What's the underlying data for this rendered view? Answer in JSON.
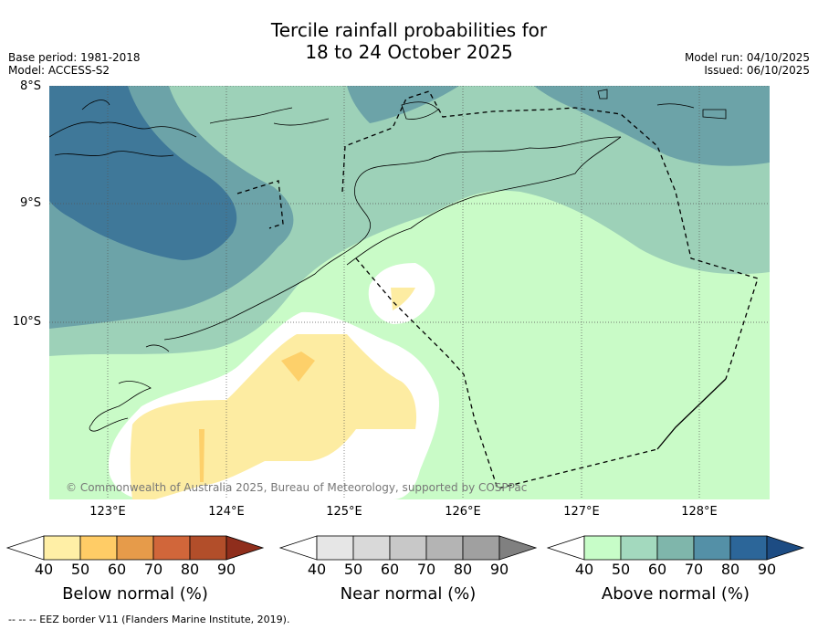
{
  "title_line1": "Tercile rainfall probabilities for",
  "title_line2": "18 to 24 October 2025",
  "meta_left": [
    "Base period: 1981-2018",
    "Model: ACCESS-S2"
  ],
  "meta_right": [
    "Model run: 04/10/2025",
    "Issued: 06/10/2025"
  ],
  "map": {
    "lat_labels": [
      "8°S",
      "9°S",
      "10°S"
    ],
    "lon_labels": [
      "123°E",
      "124°E",
      "125°E",
      "126°E",
      "127°E",
      "128°E"
    ],
    "copyright": "© Commonwealth of Australia 2025, Bureau of Meteorology, supported by COSPPac",
    "colors": {
      "above_40_50": "#c9fbc7",
      "above_50_60": "#9dd1b8",
      "above_60_70": "#6ca3a8",
      "above_70_80": "#3f7899",
      "below_40_50": "#fdeca2",
      "below_50_60": "#fdd06a",
      "near_white": "#ffffff"
    }
  },
  "colorbars": {
    "ticks": [
      "40",
      "50",
      "60",
      "70",
      "80",
      "90"
    ],
    "below": {
      "title": "Below normal (%)",
      "colors": [
        "#ffefa6",
        "#ffcc66",
        "#e69b4a",
        "#d1663a",
        "#b24e2a"
      ],
      "extend_color": "#8f2e1c"
    },
    "near": {
      "title": "Near normal (%)",
      "colors": [
        "#e6e6e6",
        "#d9d9d9",
        "#c8c8c8",
        "#b4b4b4",
        "#a0a0a0"
      ],
      "extend_color": "#808080"
    },
    "above": {
      "title": "Above normal (%)",
      "colors": [
        "#c7fdc8",
        "#a3d9be",
        "#7fb6ab",
        "#5490a7",
        "#2c6699"
      ],
      "extend_color": "#1d4c83"
    }
  },
  "footer": "-- -- -- EEZ border V11 (Flanders Marine Institute, 2019)."
}
